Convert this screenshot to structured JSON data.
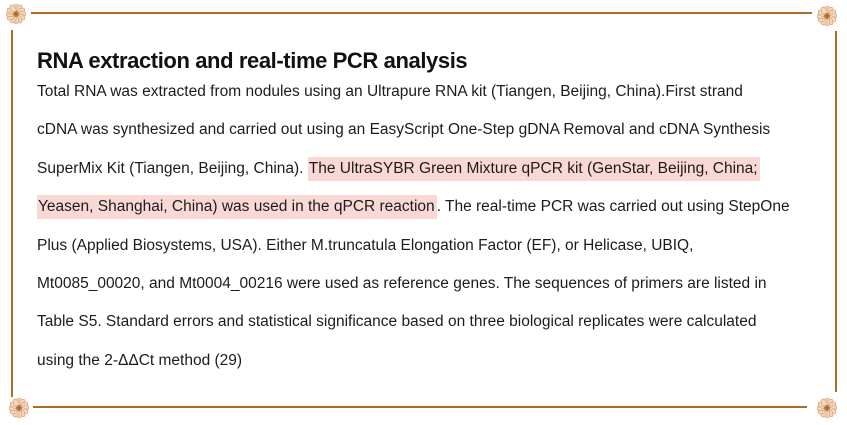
{
  "document": {
    "section_title": "RNA extraction and real-time PCR analysis",
    "lines": [
      {
        "segments": [
          {
            "text": "Total RNA was extracted from nodules using an Ultrapure RNA kit (Tiangen, Beijing, China).First strand",
            "highlight": false
          }
        ]
      },
      {
        "segments": [
          {
            "text": "cDNA was synthesized and carried out using an EasyScript One-Step gDNA Removal and cDNA Synthesis",
            "highlight": false
          }
        ]
      },
      {
        "segments": [
          {
            "text": "SuperMix Kit (Tiangen, Beijing, China). ",
            "highlight": false
          },
          {
            "text": "The UltraSYBR Green Mixture qPCR kit (GenStar, Beijing, China;",
            "highlight": true
          }
        ]
      },
      {
        "segments": [
          {
            "text": "Yeasen, Shanghai, China) was used in the qPCR reaction",
            "highlight": true
          },
          {
            "text": ". The real-time PCR was carried out using StepOne",
            "highlight": false
          }
        ]
      },
      {
        "segments": [
          {
            "text": "Plus (Applied Biosystems, USA). Either M.truncatula Elongation Factor (EF), or Helicase, UBIQ,",
            "highlight": false
          }
        ]
      },
      {
        "segments": [
          {
            "text": "Mt0085_00020, and Mt0004_00216 were used as reference genes. The sequences of primers are listed in",
            "highlight": false
          }
        ]
      },
      {
        "segments": [
          {
            "text": "Table S5. Standard errors and statistical significance based on three biological replicates were calculated",
            "highlight": false
          }
        ]
      },
      {
        "segments": [
          {
            "text": "using the 2-ΔΔCt method (29)",
            "highlight": false
          }
        ]
      }
    ]
  },
  "ornaments": {
    "corner_flowers": [
      "top-left",
      "top-right",
      "bottom-left",
      "bottom-right"
    ]
  },
  "colors": {
    "frame_border": "#ad6a29",
    "body_text": "#1c1c1c",
    "title_text": "#111111",
    "highlight_pink": "#fad8d5",
    "flower_petal": "#f1d6bd",
    "flower_petal_stroke": "#d8a271",
    "flower_center": "#c08350"
  }
}
